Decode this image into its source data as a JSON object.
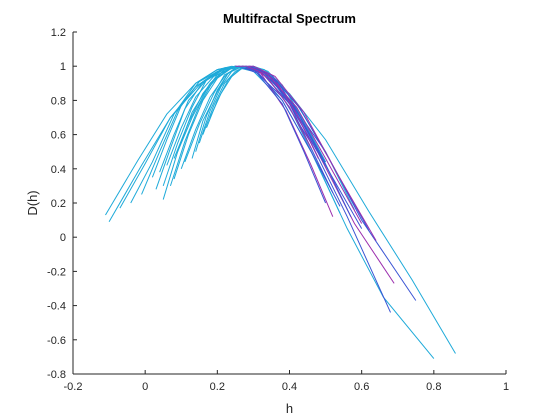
{
  "chart_data": {
    "type": "line",
    "title": "Multifractal Spectrum",
    "xlabel": "h",
    "ylabel": "D(h)",
    "xlim": [
      -0.2,
      1
    ],
    "ylim": [
      -0.8,
      1.2
    ],
    "xticks": [
      "-0.2",
      "0",
      "0.2",
      "0.4",
      "0.6",
      "0.8",
      "1"
    ],
    "yticks": [
      "-0.8",
      "-0.6",
      "-0.4",
      "-0.2",
      "0",
      "0.2",
      "0.4",
      "0.6",
      "0.8",
      "1",
      "1.2"
    ],
    "grid": false,
    "legend": "none",
    "colors": {
      "left_branch": "#1eaad9",
      "right_branch_blue": "#3b55d4",
      "right_branch_magenta": "#9b2fae",
      "right_branch_cyan": "#1eaad9",
      "axes": "#262626"
    },
    "series": [
      {
        "x": [
          -0.11,
          -0.02,
          0.06,
          0.14,
          0.2,
          0.24,
          0.3,
          0.38,
          0.46,
          0.56,
          0.66,
          0.8
        ],
        "y": [
          0.13,
          0.45,
          0.72,
          0.9,
          0.98,
          1.0,
          0.97,
          0.8,
          0.5,
          0.05,
          -0.35,
          -0.71
        ]
      },
      {
        "x": [
          -0.1,
          -0.01,
          0.07,
          0.15,
          0.21,
          0.25,
          0.31,
          0.4,
          0.5,
          0.62,
          0.74,
          0.86
        ],
        "y": [
          0.09,
          0.42,
          0.7,
          0.89,
          0.97,
          1.0,
          0.98,
          0.84,
          0.57,
          0.15,
          -0.25,
          -0.68
        ]
      },
      {
        "x": [
          -0.07,
          0.0,
          0.07,
          0.14,
          0.2,
          0.25,
          0.3,
          0.38,
          0.46,
          0.56,
          0.68
        ],
        "y": [
          0.17,
          0.43,
          0.7,
          0.88,
          0.97,
          1.0,
          0.98,
          0.82,
          0.55,
          0.12,
          -0.44
        ]
      },
      {
        "x": [
          -0.04,
          0.02,
          0.08,
          0.14,
          0.2,
          0.25,
          0.32,
          0.4,
          0.5,
          0.6,
          0.75
        ],
        "y": [
          0.2,
          0.44,
          0.72,
          0.9,
          0.98,
          1.0,
          0.98,
          0.8,
          0.5,
          0.1,
          -0.37
        ]
      },
      {
        "x": [
          -0.01,
          0.04,
          0.09,
          0.15,
          0.21,
          0.26,
          0.32,
          0.4,
          0.48,
          0.58,
          0.69
        ],
        "y": [
          0.25,
          0.5,
          0.74,
          0.91,
          0.98,
          1.0,
          0.97,
          0.78,
          0.49,
          0.08,
          -0.27
        ]
      },
      {
        "x": [
          0.03,
          0.07,
          0.11,
          0.16,
          0.21,
          0.26,
          0.32,
          0.4,
          0.5,
          0.6
        ],
        "y": [
          0.28,
          0.52,
          0.75,
          0.91,
          0.98,
          1.0,
          0.97,
          0.78,
          0.42,
          0.05
        ]
      },
      {
        "x": [
          0.05,
          0.09,
          0.13,
          0.18,
          0.22,
          0.27,
          0.32,
          0.39,
          0.46,
          0.52
        ],
        "y": [
          0.22,
          0.5,
          0.73,
          0.9,
          0.98,
          1.0,
          0.96,
          0.74,
          0.42,
          0.12
        ]
      },
      {
        "x": [
          0.05,
          0.09,
          0.13,
          0.17,
          0.22,
          0.26,
          0.31,
          0.38,
          0.44,
          0.5
        ],
        "y": [
          0.3,
          0.55,
          0.76,
          0.92,
          0.99,
          1.0,
          0.96,
          0.78,
          0.5,
          0.2
        ]
      },
      {
        "x": [
          0.07,
          0.11,
          0.15,
          0.19,
          0.23,
          0.27,
          0.33,
          0.4,
          0.47,
          0.54
        ],
        "y": [
          0.3,
          0.56,
          0.77,
          0.92,
          0.98,
          1.0,
          0.96,
          0.76,
          0.46,
          0.14
        ]
      },
      {
        "x": [
          0.08,
          0.12,
          0.16,
          0.2,
          0.24,
          0.28,
          0.34,
          0.42,
          0.5,
          0.58
        ],
        "y": [
          0.34,
          0.6,
          0.8,
          0.93,
          0.99,
          1.0,
          0.96,
          0.78,
          0.5,
          0.16
        ]
      },
      {
        "x": [
          0.1,
          0.14,
          0.18,
          0.22,
          0.25,
          0.29,
          0.34,
          0.4,
          0.46,
          0.52
        ],
        "y": [
          0.4,
          0.63,
          0.82,
          0.94,
          0.99,
          1.0,
          0.95,
          0.78,
          0.52,
          0.26
        ]
      },
      {
        "x": [
          0.11,
          0.15,
          0.19,
          0.22,
          0.26,
          0.3,
          0.35,
          0.42,
          0.5
        ],
        "y": [
          0.44,
          0.66,
          0.84,
          0.95,
          0.99,
          1.0,
          0.94,
          0.74,
          0.44
        ]
      },
      {
        "x": [
          0.13,
          0.16,
          0.2,
          0.23,
          0.26,
          0.3,
          0.34,
          0.4,
          0.46
        ],
        "y": [
          0.46,
          0.68,
          0.85,
          0.96,
          1.0,
          0.99,
          0.93,
          0.76,
          0.52
        ]
      },
      {
        "x": [
          0.14,
          0.17,
          0.2,
          0.23,
          0.27,
          0.31,
          0.35,
          0.41,
          0.47
        ],
        "y": [
          0.5,
          0.71,
          0.86,
          0.96,
          1.0,
          0.99,
          0.93,
          0.76,
          0.54
        ]
      },
      {
        "x": [
          0.15,
          0.18,
          0.21,
          0.24,
          0.27,
          0.31,
          0.36,
          0.42,
          0.48
        ],
        "y": [
          0.55,
          0.74,
          0.88,
          0.97,
          1.0,
          0.99,
          0.92,
          0.72,
          0.46
        ]
      },
      {
        "x": [
          0.16,
          0.19,
          0.22,
          0.25,
          0.28,
          0.32,
          0.37,
          0.43,
          0.5
        ],
        "y": [
          0.6,
          0.77,
          0.9,
          0.97,
          1.0,
          0.98,
          0.9,
          0.7,
          0.42
        ]
      },
      {
        "x": [
          0.17,
          0.2,
          0.23,
          0.26,
          0.29,
          0.33,
          0.38,
          0.44,
          0.5
        ],
        "y": [
          0.64,
          0.8,
          0.92,
          0.98,
          1.0,
          0.98,
          0.89,
          0.68,
          0.44
        ]
      },
      {
        "x": [
          0.18,
          0.21,
          0.24,
          0.27,
          0.3,
          0.34,
          0.39,
          0.45,
          0.52
        ],
        "y": [
          0.7,
          0.84,
          0.94,
          0.99,
          1.0,
          0.97,
          0.86,
          0.64,
          0.34
        ]
      },
      {
        "x": [
          0.02,
          0.06,
          0.1,
          0.15,
          0.2,
          0.25,
          0.31,
          0.38,
          0.46,
          0.54
        ],
        "y": [
          0.35,
          0.57,
          0.77,
          0.91,
          0.98,
          1.0,
          0.97,
          0.8,
          0.5,
          0.18
        ]
      },
      {
        "x": [
          0.04,
          0.08,
          0.12,
          0.17,
          0.22,
          0.27,
          0.33,
          0.41,
          0.49,
          0.57
        ],
        "y": [
          0.38,
          0.6,
          0.8,
          0.92,
          0.99,
          1.0,
          0.96,
          0.78,
          0.47,
          0.12
        ]
      },
      {
        "x": [
          0.06,
          0.1,
          0.14,
          0.19,
          0.24,
          0.28,
          0.34,
          0.42,
          0.5,
          0.6
        ],
        "y": [
          0.42,
          0.64,
          0.82,
          0.94,
          0.99,
          1.0,
          0.95,
          0.76,
          0.46,
          0.08
        ]
      },
      {
        "x": [
          0.08,
          0.12,
          0.16,
          0.2,
          0.24,
          0.29,
          0.35,
          0.43,
          0.52,
          0.62
        ],
        "y": [
          0.46,
          0.67,
          0.84,
          0.95,
          0.99,
          1.0,
          0.95,
          0.75,
          0.42,
          0.04
        ]
      },
      {
        "x": [
          0.09,
          0.13,
          0.17,
          0.21,
          0.25,
          0.3,
          0.36,
          0.44,
          0.53,
          0.64
        ],
        "y": [
          0.5,
          0.7,
          0.86,
          0.96,
          1.0,
          1.0,
          0.94,
          0.73,
          0.38,
          -0.02
        ]
      }
    ]
  }
}
